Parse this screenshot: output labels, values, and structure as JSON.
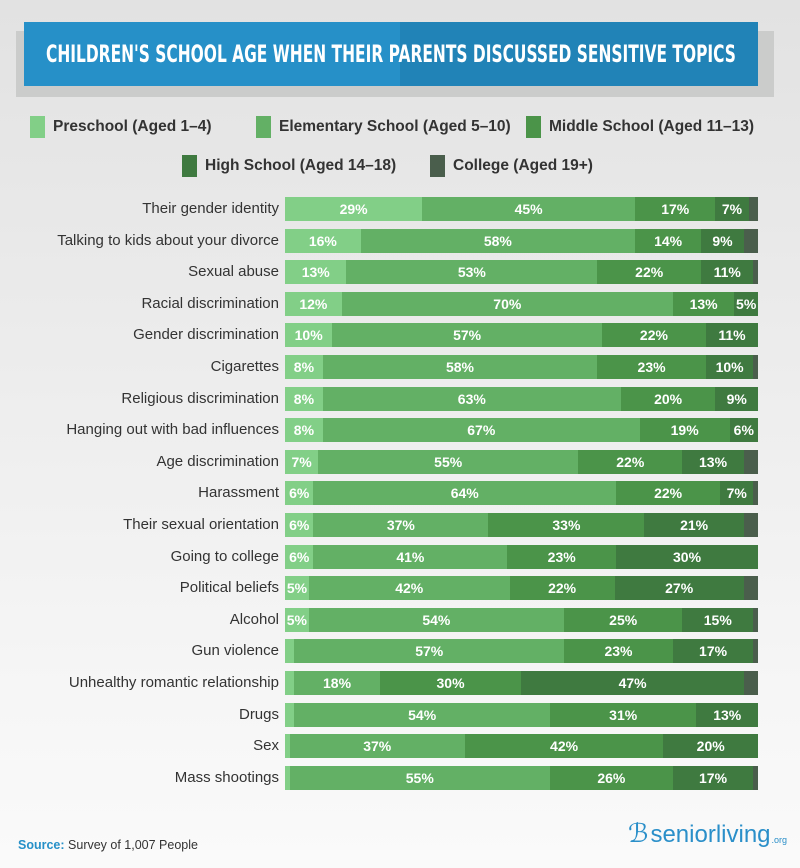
{
  "chart_data": {
    "type": "bar",
    "orientation": "horizontal",
    "stacked": true,
    "title": "CHILDREN'S SCHOOL AGE WHEN THEIR PARENTS DISCUSSED SENSITIVE TOPICS",
    "legend_position": "top",
    "xlim": [
      0,
      100
    ],
    "series": [
      {
        "name": "Preschool (Aged 1–4)",
        "color": "#82cf87"
      },
      {
        "name": "Elementary School (Aged 5–10)",
        "color": "#63b065"
      },
      {
        "name": "Middle School (Aged 11–13)",
        "color": "#4b9449"
      },
      {
        "name": "High School (Aged 14–18)",
        "color": "#3f7a40"
      },
      {
        "name": "College (Aged 19+)",
        "color": "#4a5e4c"
      }
    ],
    "categories": [
      "Their gender identity",
      "Talking to kids about your divorce",
      "Sexual abuse",
      "Racial discrimination",
      "Gender discrimination",
      "Cigarettes",
      "Religious discrimination",
      "Hanging out with bad influences",
      "Age discrimination",
      "Harassment",
      "Their sexual orientation",
      "Going to college",
      "Political beliefs",
      "Alcohol",
      "Gun violence",
      "Unhealthy romantic relationship",
      "Drugs",
      "Sex",
      "Mass shootings"
    ],
    "values": [
      [
        29,
        45,
        17,
        7,
        2
      ],
      [
        16,
        58,
        14,
        9,
        3
      ],
      [
        13,
        53,
        22,
        11,
        1
      ],
      [
        12,
        70,
        13,
        5,
        0
      ],
      [
        10,
        57,
        22,
        11,
        0
      ],
      [
        8,
        58,
        23,
        10,
        1
      ],
      [
        8,
        63,
        20,
        9,
        0
      ],
      [
        8,
        67,
        19,
        6,
        0
      ],
      [
        7,
        55,
        22,
        13,
        3
      ],
      [
        6,
        64,
        22,
        7,
        1
      ],
      [
        6,
        37,
        33,
        21,
        3
      ],
      [
        6,
        41,
        23,
        30,
        0
      ],
      [
        5,
        42,
        22,
        27,
        3
      ],
      [
        5,
        54,
        25,
        15,
        1
      ],
      [
        2,
        57,
        23,
        17,
        1
      ],
      [
        2,
        18,
        30,
        47,
        3
      ],
      [
        2,
        54,
        31,
        13,
        0
      ],
      [
        1,
        37,
        42,
        20,
        0
      ],
      [
        1,
        55,
        26,
        17,
        1
      ]
    ],
    "labels": [
      [
        "29%",
        "45%",
        "17%",
        "7%",
        ""
      ],
      [
        "16%",
        "58%",
        "14%",
        "9%",
        ""
      ],
      [
        "13%",
        "53%",
        "22%",
        "11%",
        ""
      ],
      [
        "12%",
        "70%",
        "13%",
        "5%",
        ""
      ],
      [
        "10%",
        "57%",
        "22%",
        "11%",
        ""
      ],
      [
        "8%",
        "58%",
        "23%",
        "10%",
        ""
      ],
      [
        "8%",
        "63%",
        "20%",
        "9%",
        ""
      ],
      [
        "8%",
        "67%",
        "19%",
        "6%",
        ""
      ],
      [
        "7%",
        "55%",
        "22%",
        "13%",
        ""
      ],
      [
        "6%",
        "64%",
        "22%",
        "7%",
        ""
      ],
      [
        "6%",
        "37%",
        "33%",
        "21%",
        ""
      ],
      [
        "6%",
        "41%",
        "23%",
        "30%",
        ""
      ],
      [
        "5%",
        "42%",
        "22%",
        "27%",
        ""
      ],
      [
        "5%",
        "54%",
        "25%",
        "15%",
        ""
      ],
      [
        "",
        "57%",
        "23%",
        "17%",
        ""
      ],
      [
        "",
        "18%",
        "30%",
        "47%",
        ""
      ],
      [
        "",
        "54%",
        "31%",
        "13%",
        ""
      ],
      [
        "",
        "37%",
        "42%",
        "20%",
        ""
      ],
      [
        "",
        "55%",
        "26%",
        "17%",
        ""
      ]
    ]
  },
  "footer": {
    "source_label": "Source:",
    "source_text": "Survey of 1,007 People",
    "logo": "seniorliving",
    "logo_suffix": ".org"
  }
}
